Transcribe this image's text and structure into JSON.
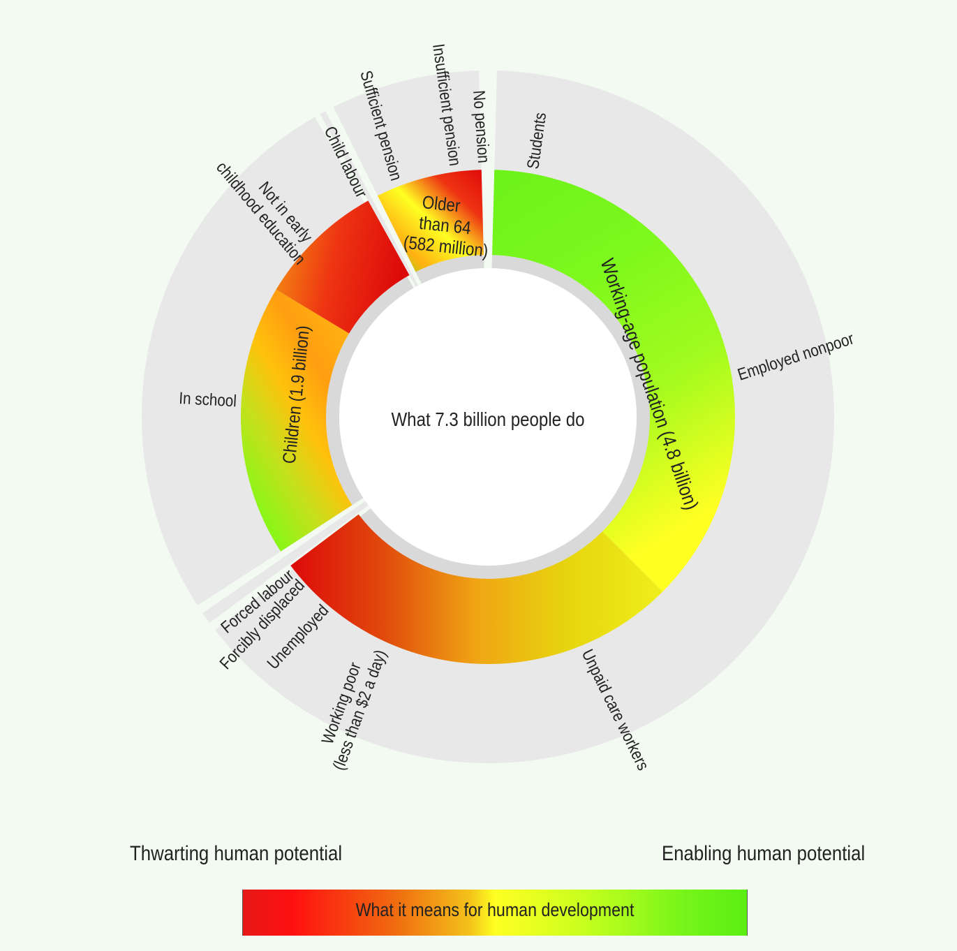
{
  "center_title": "What 7.3 billion people do",
  "groups": [
    {
      "id": "working",
      "label": "Working-age population (4.8 billion)",
      "colors": [
        "#6cf21a",
        "#7cf81c",
        "#a2fb1e",
        "#ffff22"
      ]
    },
    {
      "id": "poor",
      "label": "",
      "colors": [
        "#f0ee1c",
        "#e6d60e",
        "#f0a514",
        "#e04a0c",
        "#dd0a0a"
      ]
    },
    {
      "id": "children",
      "label": "Children (1.9 billion)",
      "colors": [
        "#66f012",
        "#90f418",
        "#c6e01c",
        "#ffc20c",
        "#ff9e10",
        "#ffb012"
      ]
    },
    {
      "id": "child-labour",
      "label": "",
      "colors": [
        "#f49812",
        "#ee3412",
        "#dd0a0a"
      ]
    },
    {
      "id": "older",
      "label_lines": [
        "Older",
        "than 64",
        "(582 million)"
      ],
      "colors": [
        "#5aee12",
        "#ffb012",
        "#ffff22",
        "#ee3412",
        "#e00a0a"
      ]
    }
  ],
  "outer_labels": {
    "students": "Students",
    "employed_nonpoor": "Employed nonpoor",
    "unpaid_care": "Unpaid care workers",
    "working_poor": [
      "Working poor",
      "(less than $2 a day)"
    ],
    "unemployed": "Unemployed",
    "forcibly_displaced": "Forcibly displaced",
    "forced_labour": "Forced labour",
    "in_school": "In school",
    "not_in_early": [
      "Not in early",
      "childhood education"
    ],
    "child_labour": "Child labour",
    "sufficient_pension": "Sufficient pension",
    "insufficient_pension": "Insufficient pension",
    "no_pension": "No pension"
  },
  "legend": {
    "left": "Thwarting human potential",
    "right": "Enabling human potential",
    "bar_label": "What it means for human development"
  }
}
